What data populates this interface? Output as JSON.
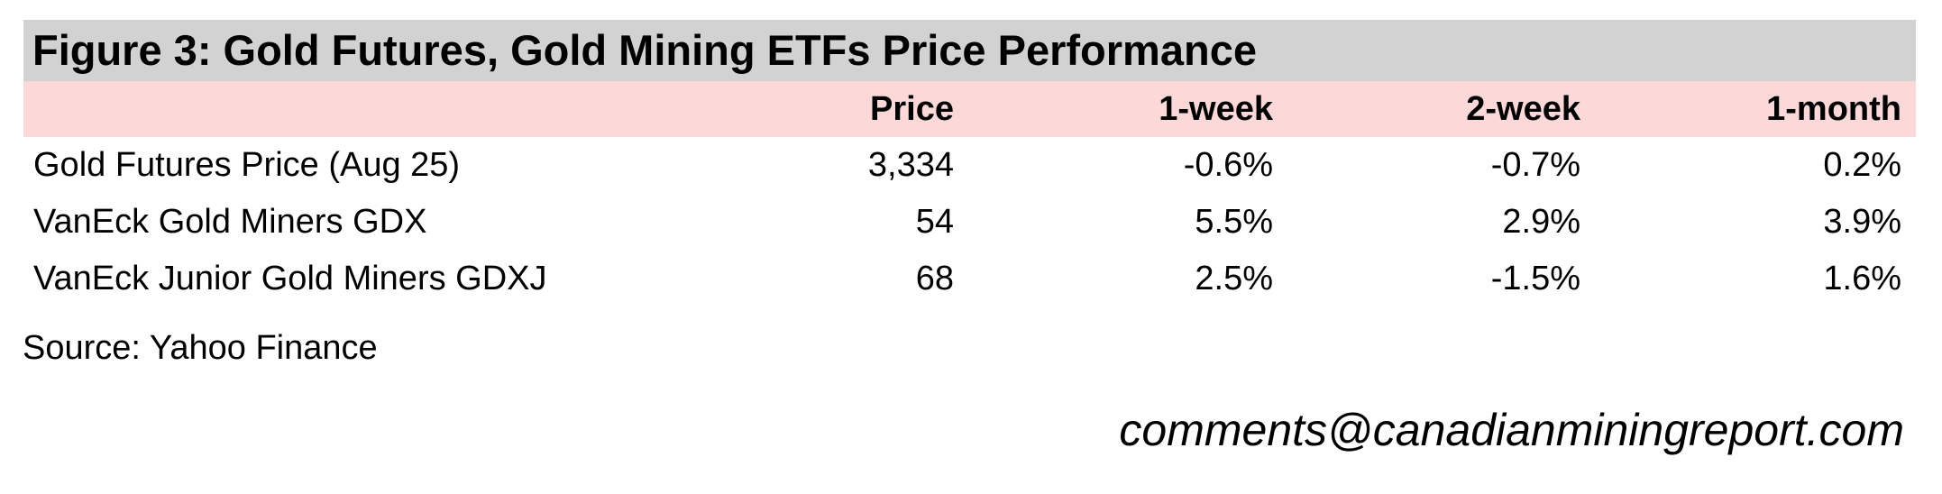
{
  "figure": {
    "title": "Figure 3: Gold Futures, Gold Mining ETFs Price Performance",
    "source": "Source: Yahoo Finance",
    "contact_email": "comments@canadianminingreport.com"
  },
  "table": {
    "columns": [
      "",
      "Price",
      "1-week",
      "2-week",
      "1-month"
    ],
    "rows": [
      {
        "cells": [
          "Gold Futures Price (Aug 25)",
          "3,334",
          "-0.6%",
          "-0.7%",
          "0.2%"
        ]
      },
      {
        "cells": [
          "VanEck Gold Miners GDX",
          "54",
          "5.5%",
          "2.9%",
          "3.9%"
        ]
      },
      {
        "cells": [
          "VanEck Junior Gold Miners GDXJ",
          "68",
          "2.5%",
          "-1.5%",
          "1.6%"
        ]
      }
    ]
  },
  "colors": {
    "title_bar_bg": "#d2d2d2",
    "header_row_bg": "#fcd8d8",
    "text": "#000000",
    "page_bg": "#ffffff"
  },
  "chart_data": {
    "type": "table",
    "title": "Figure 3: Gold Futures, Gold Mining ETFs Price Performance",
    "columns": [
      "",
      "Price",
      "1-week",
      "2-week",
      "1-month"
    ],
    "rows": [
      [
        "Gold Futures Price (Aug 25)",
        3334,
        -0.6,
        -0.7,
        0.2
      ],
      [
        "VanEck Gold Miners GDX",
        54,
        5.5,
        2.9,
        3.9
      ],
      [
        "VanEck Junior Gold Miners GDXJ",
        68,
        2.5,
        -1.5,
        1.6
      ]
    ],
    "value_units": [
      "",
      "price level",
      "percent",
      "percent",
      "percent"
    ],
    "source": "Yahoo Finance"
  }
}
